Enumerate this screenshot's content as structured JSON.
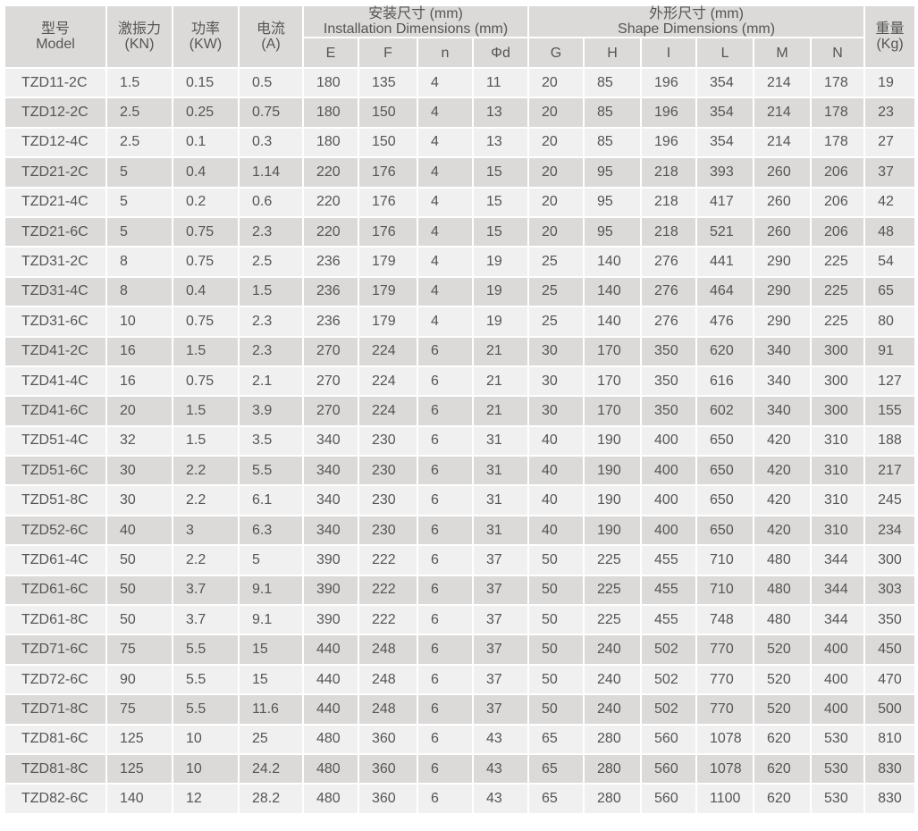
{
  "header": {
    "model_cn": "型号",
    "model_en": "Model",
    "force_cn": "激振力",
    "force_unit": "(KN)",
    "power_cn": "功率",
    "power_unit": "(KW)",
    "current_cn": "电流",
    "current_unit": "(A)",
    "install_cn": "安装尺寸 (mm)",
    "install_en": "Installation Dimensions (mm)",
    "shape_cn": "外形尺寸 (mm)",
    "shape_en": "Shape Dimensions (mm)",
    "weight_cn": "重量",
    "weight_unit": "(Kg)",
    "install_cols": [
      "E",
      "F",
      "n",
      "Φd"
    ],
    "shape_cols": [
      "G",
      "H",
      "I",
      "L",
      "M",
      "N"
    ]
  },
  "rows": [
    [
      "TZD11-2C",
      "1.5",
      "0.15",
      "0.5",
      "180",
      "135",
      "4",
      "11",
      "20",
      "85",
      "196",
      "354",
      "214",
      "178",
      "19"
    ],
    [
      "TZD12-2C",
      "2.5",
      "0.25",
      "0.75",
      "180",
      "150",
      "4",
      "13",
      "20",
      "85",
      "196",
      "354",
      "214",
      "178",
      "23"
    ],
    [
      "TZD12-4C",
      "2.5",
      "0.1",
      "0.3",
      "180",
      "150",
      "4",
      "13",
      "20",
      "85",
      "196",
      "354",
      "214",
      "178",
      "27"
    ],
    [
      "TZD21-2C",
      "5",
      "0.4",
      "1.14",
      "220",
      "176",
      "4",
      "15",
      "20",
      "95",
      "218",
      "393",
      "260",
      "206",
      "37"
    ],
    [
      "TZD21-4C",
      "5",
      "0.2",
      "0.6",
      "220",
      "176",
      "4",
      "15",
      "20",
      "95",
      "218",
      "417",
      "260",
      "206",
      "42"
    ],
    [
      "TZD21-6C",
      "5",
      "0.75",
      "2.3",
      "220",
      "176",
      "4",
      "15",
      "20",
      "95",
      "218",
      "521",
      "260",
      "206",
      "48"
    ],
    [
      "TZD31-2C",
      "8",
      "0.75",
      "2.5",
      "236",
      "179",
      "4",
      "19",
      "25",
      "140",
      "276",
      "441",
      "290",
      "225",
      "54"
    ],
    [
      "TZD31-4C",
      "8",
      "0.4",
      "1.5",
      "236",
      "179",
      "4",
      "19",
      "25",
      "140",
      "276",
      "464",
      "290",
      "225",
      "65"
    ],
    [
      "TZD31-6C",
      "10",
      "0.75",
      "2.3",
      "236",
      "179",
      "4",
      "19",
      "25",
      "140",
      "276",
      "476",
      "290",
      "225",
      "80"
    ],
    [
      "TZD41-2C",
      "16",
      "1.5",
      "2.3",
      "270",
      "224",
      "6",
      "21",
      "30",
      "170",
      "350",
      "620",
      "340",
      "300",
      "91"
    ],
    [
      "TZD41-4C",
      "16",
      "0.75",
      "2.1",
      "270",
      "224",
      "6",
      "21",
      "30",
      "170",
      "350",
      "616",
      "340",
      "300",
      "127"
    ],
    [
      "TZD41-6C",
      "20",
      "1.5",
      "3.9",
      "270",
      "224",
      "6",
      "21",
      "30",
      "170",
      "350",
      "602",
      "340",
      "300",
      "155"
    ],
    [
      "TZD51-4C",
      "32",
      "1.5",
      "3.5",
      "340",
      "230",
      "6",
      "31",
      "40",
      "190",
      "400",
      "650",
      "420",
      "310",
      "188"
    ],
    [
      "TZD51-6C",
      "30",
      "2.2",
      "5.5",
      "340",
      "230",
      "6",
      "31",
      "40",
      "190",
      "400",
      "650",
      "420",
      "310",
      "217"
    ],
    [
      "TZD51-8C",
      "30",
      "2.2",
      "6.1",
      "340",
      "230",
      "6",
      "31",
      "40",
      "190",
      "400",
      "650",
      "420",
      "310",
      "245"
    ],
    [
      "TZD52-6C",
      "40",
      "3",
      "6.3",
      "340",
      "230",
      "6",
      "31",
      "40",
      "190",
      "400",
      "650",
      "420",
      "310",
      "234"
    ],
    [
      "TZD61-4C",
      "50",
      "2.2",
      "5",
      "390",
      "222",
      "6",
      "37",
      "50",
      "225",
      "455",
      "710",
      "480",
      "344",
      "300"
    ],
    [
      "TZD61-6C",
      "50",
      "3.7",
      "9.1",
      "390",
      "222",
      "6",
      "37",
      "50",
      "225",
      "455",
      "710",
      "480",
      "344",
      "303"
    ],
    [
      "TZD61-8C",
      "50",
      "3.7",
      "9.1",
      "390",
      "222",
      "6",
      "37",
      "50",
      "225",
      "455",
      "748",
      "480",
      "344",
      "350"
    ],
    [
      "TZD71-6C",
      "75",
      "5.5",
      "15",
      "440",
      "248",
      "6",
      "37",
      "50",
      "240",
      "502",
      "770",
      "520",
      "400",
      "450"
    ],
    [
      "TZD72-6C",
      "90",
      "5.5",
      "15",
      "440",
      "248",
      "6",
      "37",
      "50",
      "240",
      "502",
      "770",
      "520",
      "400",
      "470"
    ],
    [
      "TZD71-8C",
      "75",
      "5.5",
      "11.6",
      "440",
      "248",
      "6",
      "37",
      "50",
      "240",
      "502",
      "770",
      "520",
      "400",
      "500"
    ],
    [
      "TZD81-6C",
      "125",
      "10",
      "25",
      "480",
      "360",
      "6",
      "43",
      "65",
      "280",
      "560",
      "1078",
      "620",
      "530",
      "810"
    ],
    [
      "TZD81-8C",
      "125",
      "10",
      "24.2",
      "480",
      "360",
      "6",
      "43",
      "65",
      "280",
      "560",
      "1078",
      "620",
      "530",
      "830"
    ],
    [
      "TZD82-6C",
      "140",
      "12",
      "28.2",
      "480",
      "360",
      "6",
      "43",
      "65",
      "280",
      "560",
      "1100",
      "620",
      "530",
      "830"
    ]
  ],
  "colors": {
    "header_bg": "#dcdad8",
    "row_light": "#f0f0f0",
    "row_dark": "#dcdad8",
    "text": "#555555"
  }
}
